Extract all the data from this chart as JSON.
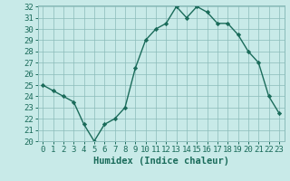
{
  "x": [
    0,
    1,
    2,
    3,
    4,
    5,
    6,
    7,
    8,
    9,
    10,
    11,
    12,
    13,
    14,
    15,
    16,
    17,
    18,
    19,
    20,
    21,
    22,
    23
  ],
  "y": [
    25.0,
    24.5,
    24.0,
    23.5,
    21.5,
    20.0,
    21.5,
    22.0,
    23.0,
    26.5,
    29.0,
    30.0,
    30.5,
    32.0,
    31.0,
    32.0,
    31.5,
    30.5,
    30.5,
    29.5,
    28.0,
    27.0,
    24.0,
    22.5
  ],
  "line_color": "#1a6b5a",
  "marker": "D",
  "marker_size": 2.2,
  "bg_color": "#c8eae8",
  "grid_color": "#8bbcba",
  "xlabel": "Humidex (Indice chaleur)",
  "ylim": [
    20,
    32
  ],
  "xlim": [
    -0.5,
    23.5
  ],
  "yticks": [
    20,
    21,
    22,
    23,
    24,
    25,
    26,
    27,
    28,
    29,
    30,
    31,
    32
  ],
  "xticks": [
    0,
    1,
    2,
    3,
    4,
    5,
    6,
    7,
    8,
    9,
    10,
    11,
    12,
    13,
    14,
    15,
    16,
    17,
    18,
    19,
    20,
    21,
    22,
    23
  ],
  "xlabel_fontsize": 7.5,
  "tick_fontsize": 6.5,
  "line_width": 1.0
}
